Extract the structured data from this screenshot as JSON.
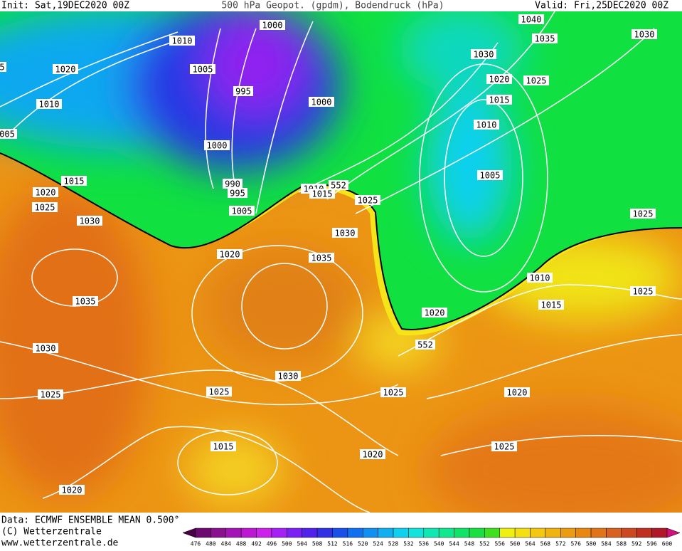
{
  "header": {
    "init": "Init: Sat,19DEC2020 00Z",
    "title": "500 hPa Geopot. (gpdm), Bodendruck (hPa)",
    "valid": "Valid: Fri,25DEC2020 00Z"
  },
  "isobar_labels": [
    "1010",
    "1000",
    "1020",
    "1005",
    "995",
    "1010",
    "1000",
    "005",
    "5",
    "1000",
    "990",
    "995",
    "1005",
    "1015",
    "1020",
    "1025",
    "1030",
    "1010",
    "1015",
    "552",
    "1025",
    "1030",
    "1020",
    "1035",
    "1035",
    "1030",
    "1025",
    "1030",
    "1025",
    "1025",
    "1015",
    "1020",
    "1020",
    "552",
    "1020",
    "1020",
    "1025",
    "1010",
    "1015",
    "1025",
    "1025",
    "1005",
    "1010",
    "1015",
    "1020",
    "1030",
    "1025",
    "1035",
    "1040",
    "1030"
  ],
  "footer": {
    "data": "Data: ECMWF ENSEMBLE MEAN 0.500°",
    "copyright": "(C) Wetterzentrale",
    "url": "www.wetterzentrale.de"
  },
  "colorbar": {
    "labels": [
      476,
      480,
      484,
      488,
      492,
      496,
      500,
      504,
      508,
      512,
      516,
      520,
      524,
      528,
      532,
      536,
      540,
      544,
      548,
      552,
      556,
      560,
      564,
      568,
      572,
      576,
      580,
      584,
      588,
      592,
      596,
      600
    ],
    "colors": [
      "#4a0048",
      "#6c0a70",
      "#8a1090",
      "#a414b4",
      "#bc18d4",
      "#cc22ec",
      "#a420f4",
      "#7a20f4",
      "#5020ec",
      "#3030e4",
      "#1850e8",
      "#1070f0",
      "#1090f0",
      "#10b0f0",
      "#10d0f0",
      "#10e4dc",
      "#10e8b4",
      "#10e890",
      "#10e468",
      "#18e040",
      "#40e020",
      "#f0f010",
      "#f4e010",
      "#f4c810",
      "#f0b410",
      "#ec9c10",
      "#e88810",
      "#e07418",
      "#d86020",
      "#cc4820",
      "#c03020",
      "#b01828",
      "#d0107c"
    ]
  }
}
